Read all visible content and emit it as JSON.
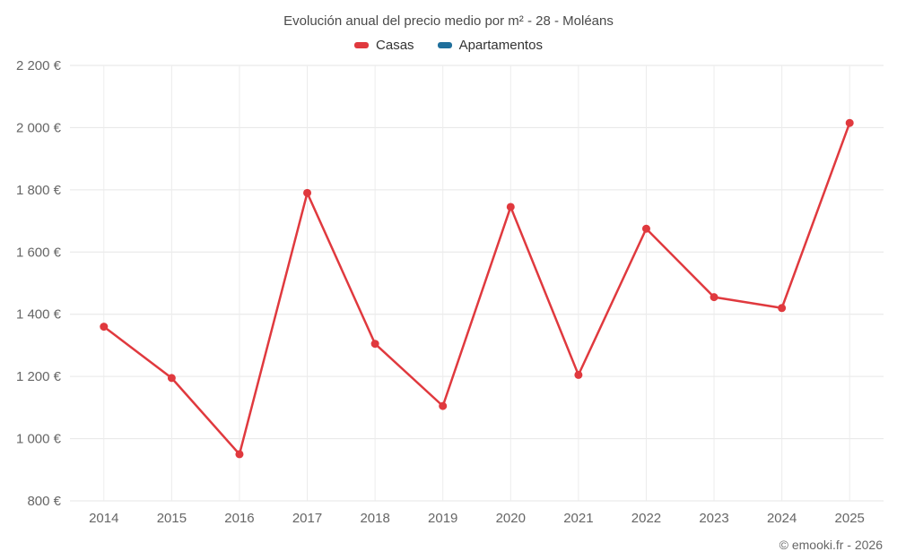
{
  "header": {
    "title": "Evolución anual del precio medio por m² - 28 - Moléans"
  },
  "legend": {
    "items": [
      {
        "label": "Casas",
        "color": "#e0393e"
      },
      {
        "label": "Apartamentos",
        "color": "#1f6f9c"
      }
    ]
  },
  "footer": {
    "credit": "© emooki.fr - 2026"
  },
  "chart_data": {
    "type": "line",
    "title": "Evolución anual del precio medio por m² - 28 - Moléans",
    "categories": [
      "2014",
      "2015",
      "2016",
      "2017",
      "2018",
      "2019",
      "2020",
      "2021",
      "2022",
      "2023",
      "2024",
      "2025"
    ],
    "series": [
      {
        "name": "Casas",
        "color": "#e0393e",
        "values": [
          1360,
          1195,
          950,
          1790,
          1305,
          1105,
          1745,
          1205,
          1675,
          1455,
          1420,
          2015
        ]
      },
      {
        "name": "Apartamentos",
        "color": "#1f6f9c",
        "values": []
      }
    ],
    "xlabel": "",
    "ylabel": "",
    "y_unit": "€",
    "ylim": [
      800,
      2200
    ],
    "y_ticks": [
      800,
      1000,
      1200,
      1400,
      1600,
      1800,
      2000,
      2200
    ],
    "grid": true,
    "legend_position": "top",
    "colors": {
      "gridline": "#e6e6e6",
      "axis_label": "#666666",
      "title_text": "#4a4a4a"
    }
  }
}
